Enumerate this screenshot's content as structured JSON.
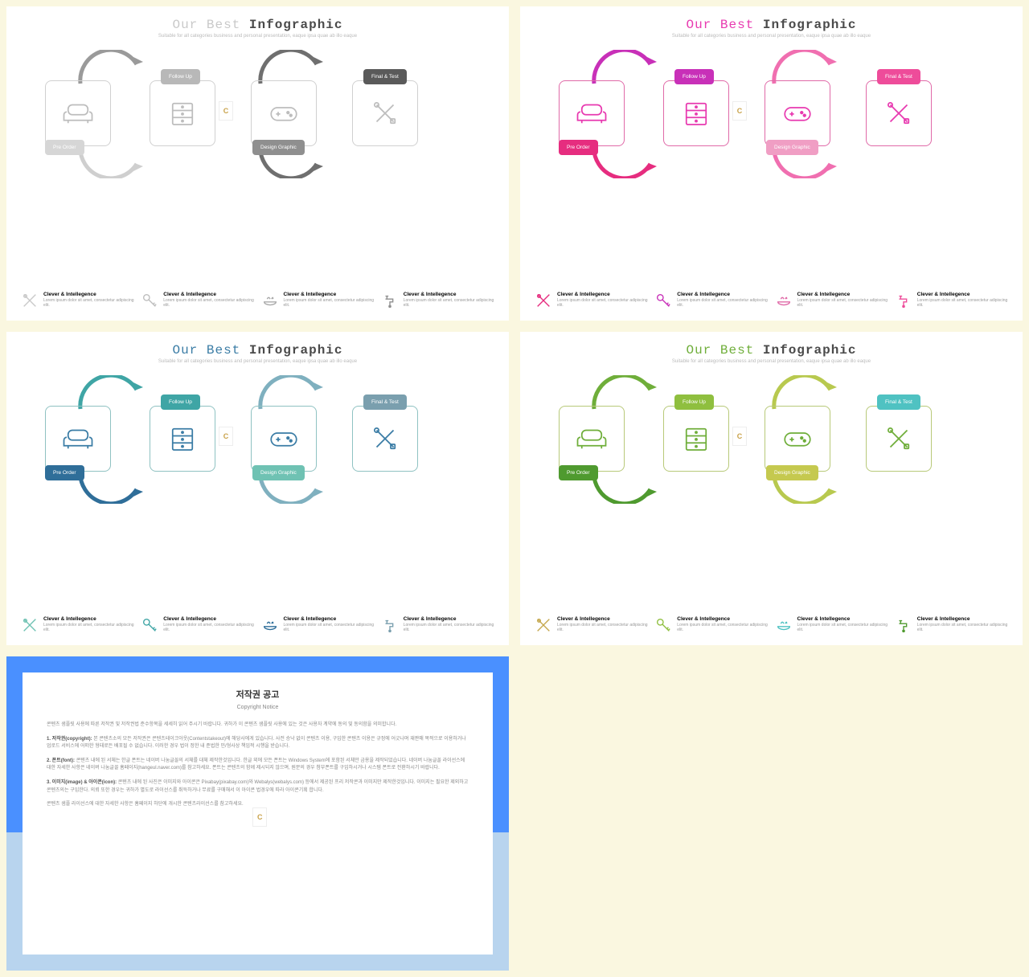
{
  "variants": [
    {
      "title_color": "#c9c9c9",
      "title_bold_color": "#4a4a4a",
      "box_border": "#d0d0d0",
      "icon_stroke": "#bdbdbd",
      "arrow1": "#cfcfcf",
      "arrow2": "#9a9a9a",
      "arrow3": "#6f6f6f",
      "label1_bg": "#d6d6d6",
      "label2_bg": "#b8b8b8",
      "label3_bg": "#8f8f8f",
      "label4_bg": "#5a5a5a",
      "feat_icons": [
        "#c9c9c9",
        "#bdbdbd",
        "#a9a9a9",
        "#8f8f8f"
      ]
    },
    {
      "title_color": "#e83ab0",
      "title_bold_color": "#4a4a4a",
      "box_border": "#e06aa8",
      "icon_stroke": "#e83ab0",
      "arrow1": "#e62d7f",
      "arrow2": "#c830b8",
      "arrow3": "#f06fb0",
      "label1_bg": "#e62d7f",
      "label2_bg": "#c830b8",
      "label3_bg": "#f09ec4",
      "label4_bg": "#ee4c9a",
      "feat_icons": [
        "#e62d7f",
        "#c830b8",
        "#e06aa8",
        "#ee4c9a"
      ]
    },
    {
      "title_color": "#3a7ca5",
      "title_bold_color": "#4a4a4a",
      "box_border": "#8fc2c2",
      "icon_stroke": "#3a7ca5",
      "arrow1": "#2f6e99",
      "arrow2": "#3fa5a5",
      "arrow3": "#7fb0bf",
      "label1_bg": "#2f6e99",
      "label2_bg": "#3fa5a5",
      "label3_bg": "#6fc2b3",
      "label4_bg": "#7a9fae",
      "feat_icons": [
        "#6fc2b3",
        "#3fa5a5",
        "#2f6e99",
        "#7a9fae"
      ]
    },
    {
      "title_color": "#6fae3a",
      "title_bold_color": "#4a4a4a",
      "box_border": "#b8c979",
      "icon_stroke": "#6fae3a",
      "arrow1": "#4f9a2f",
      "arrow2": "#6fae3a",
      "arrow3": "#b8c94f",
      "label1_bg": "#4f9a2f",
      "label2_bg": "#8fbf3f",
      "label3_bg": "#c5c94f",
      "label4_bg": "#4fc2c2",
      "feat_icons": [
        "#c5a84f",
        "#8fbf3f",
        "#4fc2c2",
        "#4f9a2f"
      ]
    }
  ],
  "title_light": "Our Best ",
  "title_bold": "Infographic",
  "subtitle": "Suitable for all categories business and personal presentation, eaque ipsa quae ab illo eaque",
  "labels": {
    "l1": "Pre Order",
    "l2": "Follow Up",
    "l3": "Design Graphic",
    "l4": "Final & Test"
  },
  "feat_title": "Clever & Intellegence",
  "feat_desc": "Lorem ipsum dolor sit amet, consectetur adipiscing elit.",
  "copyright": {
    "title_ko": "저작권 공고",
    "title_en": "Copyright Notice",
    "p1": "콘텐츠 샘플릿 사용에 따른 저작권 및 저작권법 준수항목을 세세히 읽어 주시기 바랍니다. 귀하가 이 콘텐츠 샘플릿 사용에 있는 것은 사용자 계약에 동의 및 동의함을 의미합니다.",
    "p2h": "1. 저작권(copyright):",
    "p2": " 본 콘텐츠소의 모든 저작권은 콘텐츠테이크아웃(Contentstakeout)에 해당사에게 있습니다. 사전 승낙 없이 콘텐츠 이용, 구입한 콘텐츠 이용은 규정에 어긋나며 재판매 목적으로 이용하거나 업로드 서비스에 어떠한 형태로든 배포될 수 없습니다. 이러한 경우 법이 정한 내 준법한 민/형사상 책임적 시행을 받습니다.",
    "p3h": "2. 폰트(font):",
    "p3": " 콘텐츠 내에 된 서체는 한글 폰트는 네이버 나눔글꼴의 서체를 대체 제작한것입니다. 한글 외에 모든 폰트는 Windows System에 포함된 서체만 금용을 제작되었습니다. 네이버 나눔글꼴 라이선스에 대한 자세한 사항은 네이버 나눔글꼴 홈페이지(hangeul.naver.com)를 참고하세요. 폰트는 콘텐츠의 함께 제시되지 않으며, 원문의 경우 첨부폰트를 구입하시거나 시스템 폰트로 전환하시기 바랍니다.",
    "p4h": "3. 이미지(image) & 아이콘(icon):",
    "p4": " 콘텐츠 내에 된 사진은 이미지와 아이콘은 Pixabay(pixabay.com)와 Webalys(webalys.com) 등에서 제공된 프리 저작콘과 이미지만 제작한것입니다. 이미지는 필요한 제외하고 콘텐츠의는 구입한다. 의뢰 또한 경우는 귀하가 별도로 라이선스를 취득하거나 무료를 구매해서 이 아이콘 법경우에 따라 아이콘기획 합니다.",
    "p5": "콘텐츠 샘플 라이선스에 대한 자세한 사항은 홈페이지 하단에 개시한 콘텐츠라이선스를 참고하세요."
  }
}
